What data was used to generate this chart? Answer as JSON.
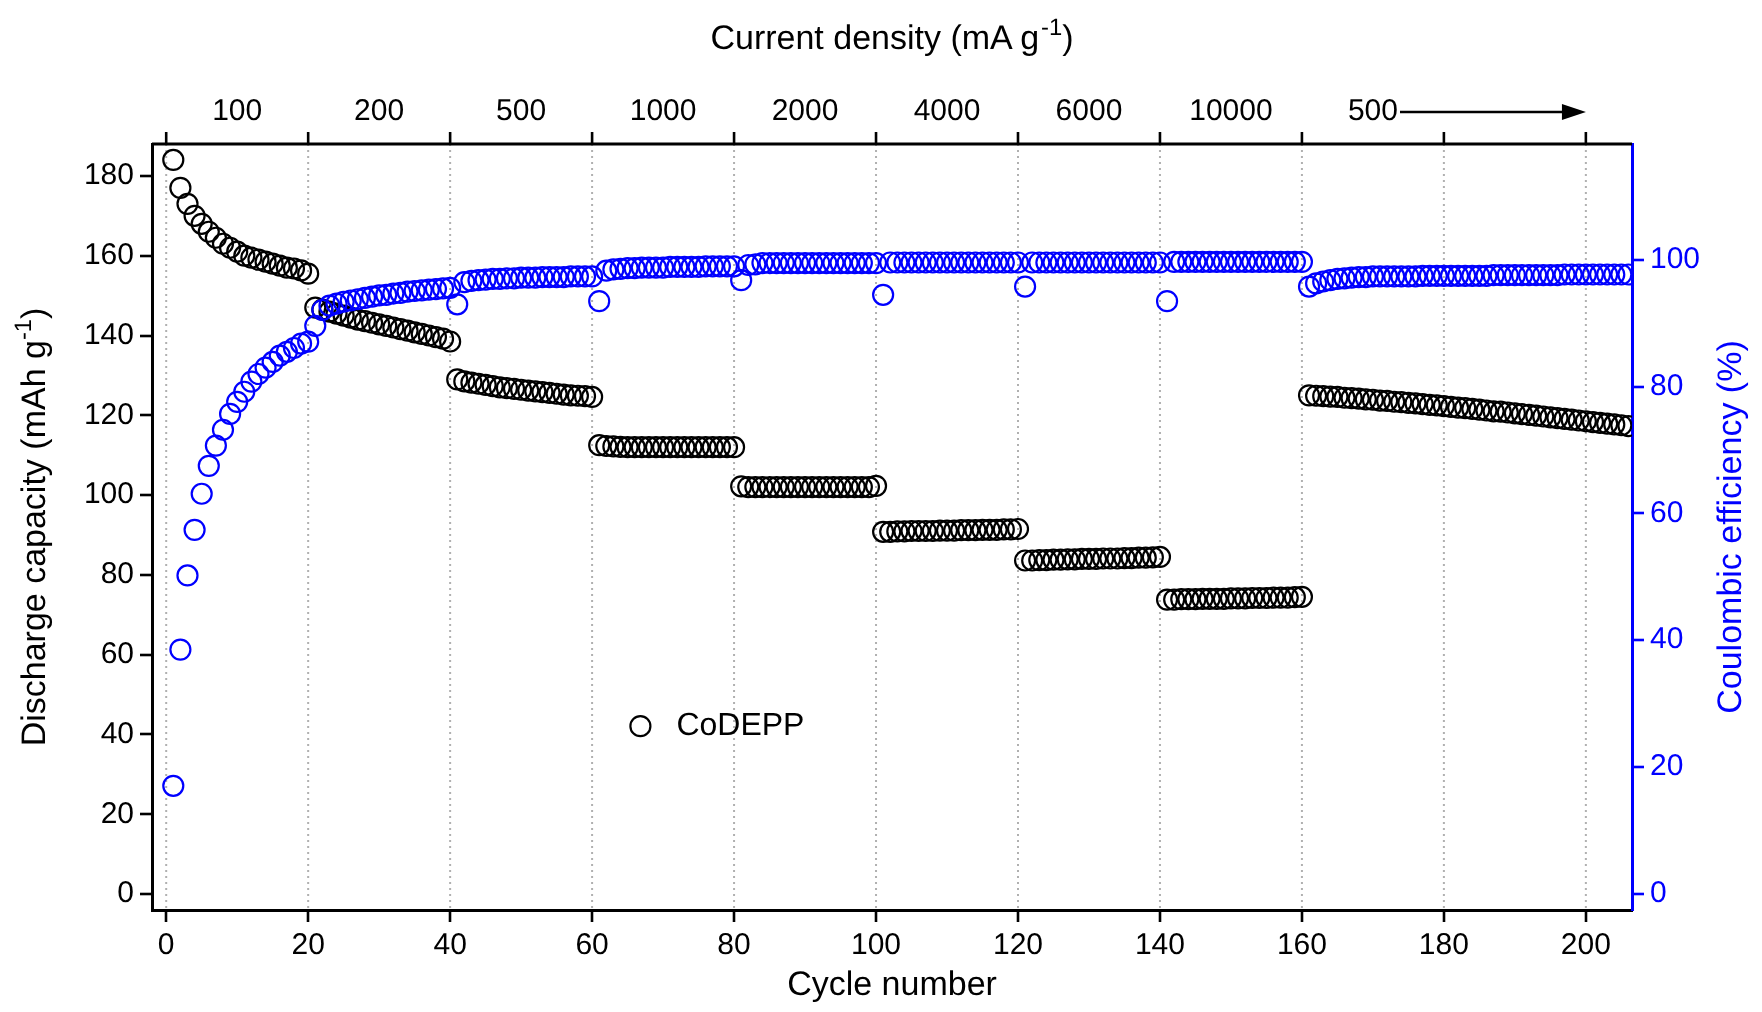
{
  "chart_data": {
    "type": "scatter",
    "xlabel": "Cycle number",
    "ylabel": "Discharge capacity (mAh g$^{-1}$)",
    "y2label": "Coulombic efficiency (%)",
    "x2label": "Current density (mA g$^{-1}$)",
    "x": [
      1,
      2,
      3,
      4,
      5,
      6,
      7,
      8,
      9,
      10,
      11,
      12,
      13,
      14,
      15,
      16,
      17,
      18,
      19,
      20,
      21,
      22,
      23,
      24,
      25,
      26,
      27,
      28,
      29,
      30,
      31,
      32,
      33,
      34,
      35,
      36,
      37,
      38,
      39,
      40,
      41,
      42,
      43,
      44,
      45,
      46,
      47,
      48,
      49,
      50,
      51,
      52,
      53,
      54,
      55,
      56,
      57,
      58,
      59,
      60,
      61,
      62,
      63,
      64,
      65,
      66,
      67,
      68,
      69,
      70,
      71,
      72,
      73,
      74,
      75,
      76,
      77,
      78,
      79,
      80,
      81,
      82,
      83,
      84,
      85,
      86,
      87,
      88,
      89,
      90,
      91,
      92,
      93,
      94,
      95,
      96,
      97,
      98,
      99,
      100,
      101,
      102,
      103,
      104,
      105,
      106,
      107,
      108,
      109,
      110,
      111,
      112,
      113,
      114,
      115,
      116,
      117,
      118,
      119,
      120,
      121,
      122,
      123,
      124,
      125,
      126,
      127,
      128,
      129,
      130,
      131,
      132,
      133,
      134,
      135,
      136,
      137,
      138,
      139,
      140,
      141,
      142,
      143,
      144,
      145,
      146,
      147,
      148,
      149,
      150,
      151,
      152,
      153,
      154,
      155,
      156,
      157,
      158,
      159,
      160,
      161,
      162,
      163,
      164,
      165,
      166,
      167,
      168,
      169,
      170,
      171,
      172,
      173,
      174,
      175,
      176,
      177,
      178,
      179,
      180,
      181,
      182,
      183,
      184,
      185,
      186,
      187,
      188,
      189,
      190,
      191,
      192,
      193,
      194,
      195,
      196,
      197,
      198,
      199,
      200,
      201,
      202,
      203,
      204,
      205,
      206
    ],
    "series": [
      {
        "name": "CoDEPP",
        "color": "#000000",
        "values": [
          184,
          177,
          173,
          170,
          168,
          166,
          164.5,
          163,
          162,
          161,
          160,
          159.5,
          159,
          158.5,
          158,
          157.5,
          157,
          156.8,
          156.3,
          155.5,
          147,
          146.5,
          146,
          145.5,
          145,
          144.5,
          144,
          143.6,
          143.2,
          142.8,
          142.4,
          142,
          141.6,
          141.2,
          140.8,
          140.4,
          140,
          139.6,
          139.2,
          138.5,
          129,
          128.5,
          128.2,
          127.9,
          127.6,
          127.3,
          127,
          126.8,
          126.6,
          126.4,
          126.2,
          126,
          125.8,
          125.6,
          125.4,
          125.2,
          125,
          124.9,
          124.8,
          124.6,
          112.5,
          112.3,
          112.2,
          112.1,
          112,
          112,
          112,
          112,
          112,
          112,
          112,
          112,
          112,
          112,
          112,
          112,
          112,
          112,
          112,
          112,
          102.2,
          102,
          102,
          102,
          102,
          102,
          102,
          102,
          102,
          102,
          102,
          102,
          102,
          102,
          102,
          102,
          102,
          102,
          102,
          102.3,
          90.8,
          90.8,
          90.9,
          90.9,
          91,
          91,
          91,
          91,
          91.1,
          91.1,
          91.1,
          91.2,
          91.2,
          91.2,
          91.3,
          91.3,
          91.3,
          91.4,
          91.4,
          91.5,
          83.6,
          83.6,
          83.7,
          83.7,
          83.8,
          83.8,
          83.9,
          83.9,
          84,
          84,
          84,
          84.1,
          84.1,
          84.1,
          84.2,
          84.2,
          84.3,
          84.3,
          84.4,
          84.5,
          73.8,
          73.8,
          73.9,
          73.9,
          73.9,
          74,
          74,
          74,
          74,
          74.1,
          74.1,
          74.1,
          74.2,
          74.2,
          74.2,
          74.3,
          74.3,
          74.3,
          74.4,
          74.5,
          125,
          124.9,
          124.8,
          124.7,
          124.6,
          124.4,
          124.3,
          124.2,
          124,
          123.9,
          123.7,
          123.6,
          123.4,
          123.3,
          123.1,
          123,
          122.8,
          122.6,
          122.5,
          122.3,
          122.1,
          121.9,
          121.8,
          121.6,
          121.4,
          121.2,
          121,
          120.9,
          120.7,
          120.5,
          120.3,
          120.1,
          119.9,
          119.7,
          119.5,
          119.3,
          119.1,
          118.9,
          118.7,
          118.5,
          118.3,
          118.1,
          117.9,
          117.7,
          117.5,
          117.3
        ]
      },
      {
        "color": "#0000ff",
        "axis": "y2",
        "values": [
          17,
          38.5,
          50.2,
          57.4,
          63.1,
          67.5,
          70.7,
          73.2,
          75.7,
          77.6,
          79.2,
          80.8,
          82,
          83,
          83.9,
          84.9,
          85.5,
          86.1,
          86.8,
          87.1,
          89.6,
          92.1,
          92.8,
          93.1,
          93.4,
          93.6,
          93.8,
          94,
          94.2,
          94.4,
          94.5,
          94.7,
          94.8,
          95,
          95.1,
          95.2,
          95.3,
          95.4,
          95.5,
          95.6,
          93,
          96.5,
          96.7,
          96.8,
          96.9,
          97,
          97,
          97.1,
          97.1,
          97.2,
          97.2,
          97.2,
          97.3,
          97.3,
          97.3,
          97.3,
          97.4,
          97.4,
          97.4,
          97.4,
          93.5,
          98.3,
          98.5,
          98.6,
          98.7,
          98.7,
          98.8,
          98.8,
          98.8,
          98.8,
          98.9,
          98.9,
          98.9,
          98.9,
          98.9,
          99,
          99,
          99,
          99,
          99,
          96.8,
          99.2,
          99.3,
          99.5,
          99.5,
          99.5,
          99.5,
          99.5,
          99.5,
          99.5,
          99.5,
          99.5,
          99.5,
          99.5,
          99.5,
          99.5,
          99.5,
          99.5,
          99.5,
          99.5,
          94.5,
          99.6,
          99.6,
          99.6,
          99.6,
          99.6,
          99.6,
          99.6,
          99.6,
          99.6,
          99.6,
          99.6,
          99.6,
          99.6,
          99.6,
          99.6,
          99.6,
          99.6,
          99.6,
          99.6,
          95.8,
          99.6,
          99.6,
          99.6,
          99.6,
          99.6,
          99.6,
          99.6,
          99.6,
          99.6,
          99.6,
          99.6,
          99.6,
          99.6,
          99.6,
          99.6,
          99.6,
          99.6,
          99.6,
          99.6,
          93.5,
          99.7,
          99.7,
          99.7,
          99.7,
          99.7,
          99.7,
          99.7,
          99.7,
          99.7,
          99.7,
          99.7,
          99.7,
          99.7,
          99.7,
          99.7,
          99.7,
          99.7,
          99.7,
          99.7,
          95.8,
          96.3,
          96.6,
          96.8,
          97,
          97.1,
          97.2,
          97.3,
          97.3,
          97.4,
          97.4,
          97.4,
          97.4,
          97.4,
          97.4,
          97.4,
          97.5,
          97.5,
          97.5,
          97.5,
          97.5,
          97.5,
          97.5,
          97.5,
          97.5,
          97.5,
          97.6,
          97.6,
          97.6,
          97.6,
          97.6,
          97.6,
          97.6,
          97.6,
          97.6,
          97.6,
          97.7,
          97.7,
          97.7,
          97.7,
          97.7,
          97.7,
          97.7,
          97.7,
          97.7,
          97.7
        ]
      }
    ],
    "xlim": [
      -2,
      206.5
    ],
    "xticks": [
      0,
      20,
      40,
      60,
      80,
      100,
      120,
      140,
      160,
      180,
      200
    ],
    "annotations": [
      "100",
      "200",
      "500",
      "1000",
      "2000",
      "4000",
      "6000",
      "10000",
      "500"
    ],
    "ylim": [
      -4,
      188
    ],
    "yticks": [
      0,
      20,
      40,
      60,
      80,
      100,
      120,
      140,
      160,
      180
    ],
    "y2lim": [
      -2.6,
      118.3
    ],
    "y2ticks": [
      0,
      20,
      40,
      60,
      80,
      100
    ],
    "grid": "x",
    "legend": "left",
    "marker": "circle"
  }
}
